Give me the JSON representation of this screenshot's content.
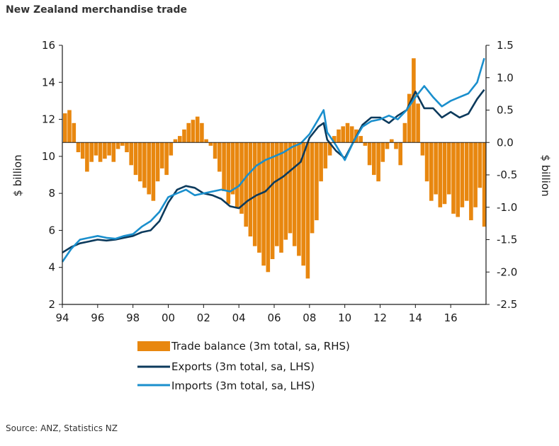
{
  "header": {
    "title": "New Zealand merchandise trade"
  },
  "footer": {
    "source": "Source: ANZ, Statistics NZ"
  },
  "chart_data": {
    "type": "line",
    "title": "New Zealand merchandise trade",
    "x_range": [
      1994,
      2018
    ],
    "x_ticks": [
      1994,
      1996,
      1998,
      2000,
      2002,
      2004,
      2006,
      2008,
      2010,
      2012,
      2014,
      2016
    ],
    "x_tick_labels": [
      "94",
      "96",
      "98",
      "00",
      "02",
      "04",
      "06",
      "08",
      "10",
      "12",
      "14",
      "16"
    ],
    "left_axis": {
      "label": "$ billion",
      "range": [
        2,
        16
      ],
      "ticks": [
        2,
        4,
        6,
        8,
        10,
        12,
        14,
        16
      ]
    },
    "right_axis": {
      "label": "$ billion",
      "range": [
        -2.5,
        1.5
      ],
      "ticks": [
        -2.5,
        -2.0,
        -1.5,
        -1.0,
        -0.5,
        0.0,
        0.5,
        1.0,
        1.5
      ],
      "tick_labels": [
        "-2.5",
        "-2.0",
        "-1.5",
        "-1.0",
        "-0.5",
        "0.0",
        "0.5",
        "1.0",
        "1.5"
      ]
    },
    "grid": false,
    "legend_position": "bottom",
    "colors": {
      "trade_balance": "#e8870f",
      "exports": "#0c3a5c",
      "imports": "#1a8fcd"
    },
    "trade_balance": {
      "name": "Trade balance (3m total, sa, RHS)",
      "axis": "right",
      "x": [
        1994.0,
        1994.25,
        1994.5,
        1994.75,
        1995.0,
        1995.25,
        1995.5,
        1995.75,
        1996.0,
        1996.25,
        1996.5,
        1996.75,
        1997.0,
        1997.25,
        1997.5,
        1997.75,
        1998.0,
        1998.25,
        1998.5,
        1998.75,
        1999.0,
        1999.25,
        1999.5,
        1999.75,
        2000.0,
        2000.25,
        2000.5,
        2000.75,
        2001.0,
        2001.25,
        2001.5,
        2001.75,
        2002.0,
        2002.25,
        2002.5,
        2002.75,
        2003.0,
        2003.25,
        2003.5,
        2003.75,
        2004.0,
        2004.25,
        2004.5,
        2004.75,
        2005.0,
        2005.25,
        2005.5,
        2005.75,
        2006.0,
        2006.25,
        2006.5,
        2006.75,
        2007.0,
        2007.25,
        2007.5,
        2007.75,
        2008.0,
        2008.25,
        2008.5,
        2008.75,
        2009.0,
        2009.25,
        2009.5,
        2009.75,
        2010.0,
        2010.25,
        2010.5,
        2010.75,
        2011.0,
        2011.25,
        2011.5,
        2011.75,
        2012.0,
        2012.25,
        2012.5,
        2012.75,
        2013.0,
        2013.25,
        2013.5,
        2013.75,
        2014.0,
        2014.25,
        2014.5,
        2014.75,
        2015.0,
        2015.25,
        2015.5,
        2015.75,
        2016.0,
        2016.25,
        2016.5,
        2016.75,
        2017.0,
        2017.25,
        2017.5,
        2017.75
      ],
      "values": [
        0.45,
        0.5,
        0.3,
        -0.15,
        -0.25,
        -0.45,
        -0.3,
        -0.2,
        -0.3,
        -0.25,
        -0.2,
        -0.3,
        -0.1,
        -0.05,
        -0.15,
        -0.35,
        -0.5,
        -0.6,
        -0.7,
        -0.8,
        -0.9,
        -0.6,
        -0.4,
        -0.5,
        -0.2,
        0.05,
        0.1,
        0.2,
        0.3,
        0.35,
        0.4,
        0.3,
        0.05,
        -0.05,
        -0.25,
        -0.45,
        -0.75,
        -0.95,
        -0.8,
        -1.0,
        -1.1,
        -1.3,
        -1.45,
        -1.6,
        -1.7,
        -1.9,
        -2.0,
        -1.8,
        -1.6,
        -1.7,
        -1.5,
        -1.4,
        -1.6,
        -1.75,
        -1.9,
        -2.1,
        -1.4,
        -1.2,
        -0.6,
        -0.4,
        -0.2,
        0.1,
        0.2,
        0.25,
        0.3,
        0.25,
        0.2,
        0.1,
        -0.05,
        -0.35,
        -0.5,
        -0.6,
        -0.3,
        -0.1,
        0.05,
        -0.1,
        -0.35,
        0.3,
        0.75,
        1.3,
        0.6,
        -0.2,
        -0.6,
        -0.9,
        -0.8,
        -1.0,
        -0.95,
        -0.8,
        -1.1,
        -1.15,
        -1.0,
        -0.9,
        -1.2,
        -1.0,
        -0.7,
        -1.3
      ]
    },
    "exports": {
      "name": "Exports (3m total, sa, LHS)",
      "axis": "left",
      "x": [
        1994.0,
        1994.5,
        1995.0,
        1995.5,
        1996.0,
        1996.5,
        1997.0,
        1997.5,
        1998.0,
        1998.5,
        1999.0,
        1999.5,
        2000.0,
        2000.5,
        2001.0,
        2001.5,
        2002.0,
        2002.5,
        2003.0,
        2003.5,
        2004.0,
        2004.5,
        2005.0,
        2005.5,
        2006.0,
        2006.5,
        2007.0,
        2007.5,
        2008.0,
        2008.5,
        2008.8,
        2009.0,
        2009.5,
        2010.0,
        2010.5,
        2011.0,
        2011.5,
        2012.0,
        2012.5,
        2013.0,
        2013.5,
        2014.0,
        2014.5,
        2015.0,
        2015.5,
        2016.0,
        2016.5,
        2017.0,
        2017.5,
        2017.9
      ],
      "values": [
        4.8,
        5.1,
        5.3,
        5.4,
        5.5,
        5.45,
        5.5,
        5.6,
        5.7,
        5.9,
        6.0,
        6.5,
        7.5,
        8.2,
        8.4,
        8.3,
        8.0,
        7.9,
        7.7,
        7.3,
        7.2,
        7.6,
        7.9,
        8.1,
        8.6,
        8.9,
        9.3,
        9.7,
        11.0,
        11.6,
        11.8,
        10.9,
        10.3,
        9.9,
        10.8,
        11.7,
        12.1,
        12.1,
        11.8,
        12.2,
        12.5,
        13.5,
        12.6,
        12.6,
        12.1,
        12.4,
        12.1,
        12.3,
        13.1,
        13.6
      ]
    },
    "imports": {
      "name": "Imports (3m total, sa, LHS)",
      "axis": "left",
      "x": [
        1994.0,
        1994.5,
        1995.0,
        1995.5,
        1996.0,
        1996.5,
        1997.0,
        1997.5,
        1998.0,
        1998.5,
        1999.0,
        1999.5,
        2000.0,
        2000.5,
        2001.0,
        2001.5,
        2002.0,
        2002.5,
        2003.0,
        2003.5,
        2004.0,
        2004.5,
        2005.0,
        2005.5,
        2006.0,
        2006.5,
        2007.0,
        2007.5,
        2008.0,
        2008.5,
        2008.8,
        2009.0,
        2009.5,
        2010.0,
        2010.5,
        2011.0,
        2011.5,
        2012.0,
        2012.5,
        2013.0,
        2013.5,
        2014.0,
        2014.5,
        2015.0,
        2015.5,
        2016.0,
        2016.5,
        2017.0,
        2017.5,
        2017.9
      ],
      "values": [
        4.3,
        5.0,
        5.5,
        5.6,
        5.7,
        5.6,
        5.55,
        5.7,
        5.8,
        6.2,
        6.5,
        7.0,
        7.8,
        8.0,
        8.2,
        7.9,
        8.0,
        8.1,
        8.2,
        8.1,
        8.4,
        9.0,
        9.5,
        9.8,
        10.0,
        10.2,
        10.5,
        10.7,
        11.2,
        12.0,
        12.5,
        11.3,
        10.6,
        9.8,
        10.8,
        11.6,
        11.9,
        12.0,
        12.2,
        12.0,
        12.5,
        13.2,
        13.8,
        13.2,
        12.7,
        13.0,
        13.2,
        13.4,
        14.0,
        15.3
      ]
    }
  }
}
